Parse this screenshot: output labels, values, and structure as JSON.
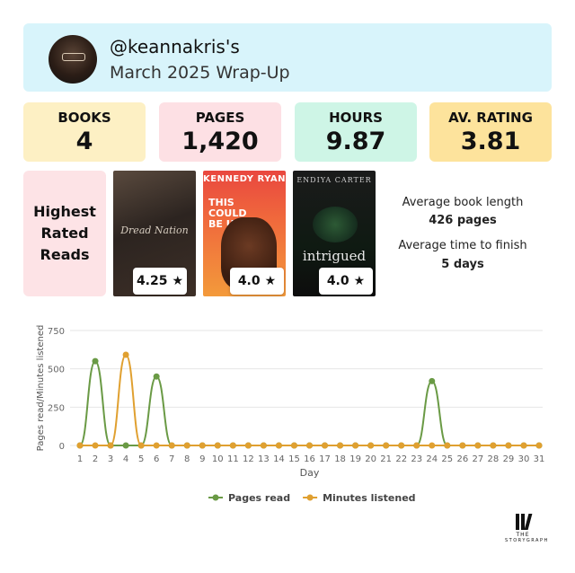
{
  "header": {
    "handle": "@keannakris's",
    "subtitle": "March 2025 Wrap-Up"
  },
  "stats": [
    {
      "label": "BOOKS",
      "value": "4",
      "color": "#fdf0c4"
    },
    {
      "label": "PAGES",
      "value": "1,420",
      "color": "#fde0e4"
    },
    {
      "label": "HOURS",
      "value": "9.87",
      "color": "#cef5e6"
    },
    {
      "label": "AV. RATING",
      "value": "3.81",
      "color": "#fde39c"
    }
  ],
  "highest_rated": {
    "heading": "Highest\nRated\nReads",
    "books": [
      {
        "cover_title": "Dread Nation",
        "rating": "4.25"
      },
      {
        "cover_author": "KENNEDY RYAN",
        "cover_title": "THIS\nCOULD\nBE US",
        "rating": "4.0"
      },
      {
        "cover_author": "ENDIYA CARTER",
        "cover_title": "intrigued",
        "rating": "4.0"
      }
    ]
  },
  "summary": {
    "avg_length_label": "Average book length",
    "avg_length_value": "426 pages",
    "avg_finish_label": "Average time to finish",
    "avg_finish_value": "5 days"
  },
  "chart_data": {
    "type": "line",
    "xlabel": "Day",
    "ylabel": "Pages read/Minutes listened",
    "ylim": [
      0,
      750
    ],
    "yticks": [
      0,
      250,
      500,
      750
    ],
    "x": [
      1,
      2,
      3,
      4,
      5,
      6,
      7,
      8,
      9,
      10,
      11,
      12,
      13,
      14,
      15,
      16,
      17,
      18,
      19,
      20,
      21,
      22,
      23,
      24,
      25,
      26,
      27,
      28,
      29,
      30,
      31
    ],
    "series": [
      {
        "name": "Pages read",
        "color": "#6a9a45",
        "values": [
          0,
          550,
          0,
          0,
          0,
          450,
          0,
          0,
          0,
          0,
          0,
          0,
          0,
          0,
          0,
          0,
          0,
          0,
          0,
          0,
          0,
          0,
          0,
          420,
          0,
          0,
          0,
          0,
          0,
          0,
          0
        ]
      },
      {
        "name": "Minutes listened",
        "color": "#e0a030",
        "values": [
          0,
          0,
          0,
          592,
          0,
          0,
          0,
          0,
          0,
          0,
          0,
          0,
          0,
          0,
          0,
          0,
          0,
          0,
          0,
          0,
          0,
          0,
          0,
          0,
          0,
          0,
          0,
          0,
          0,
          0,
          0
        ]
      }
    ],
    "legend_position": "bottom",
    "grid": true
  },
  "logo": {
    "line1": "THE",
    "line2": "STORYGRAPH"
  }
}
